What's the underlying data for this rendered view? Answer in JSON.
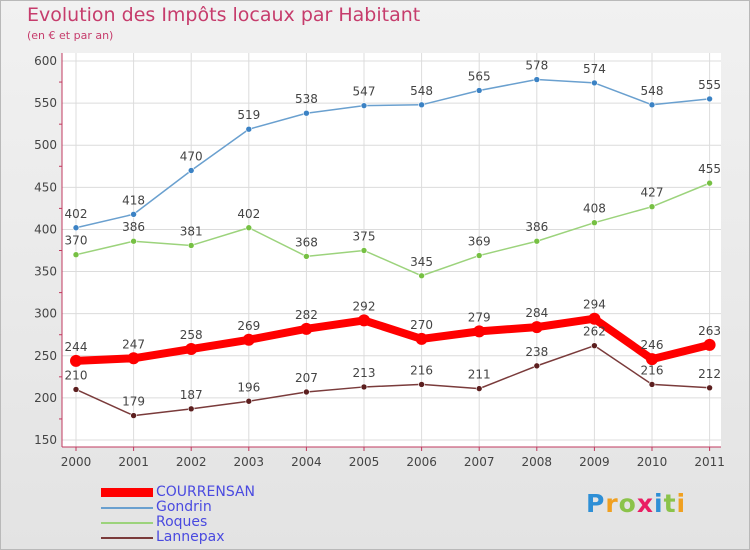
{
  "title": "Evolution des Impôts locaux par Habitant",
  "subtitle": "(en € et par an)",
  "logo": {
    "text": "Proxiti",
    "colors": [
      "#2e8fd6",
      "#f0a020",
      "#8bc34a",
      "#e91e63",
      "#2e8fd6",
      "#8bc34a",
      "#f0a020"
    ]
  },
  "chart_data": {
    "type": "line",
    "categories": [
      "2000",
      "2001",
      "2002",
      "2003",
      "2004",
      "2005",
      "2006",
      "2007",
      "2008",
      "2009",
      "2010",
      "2011"
    ],
    "ylim": [
      150,
      600
    ],
    "yticks": [
      150,
      200,
      250,
      300,
      350,
      400,
      450,
      500,
      550,
      600
    ],
    "grid": true,
    "legend_position": "bottom-left",
    "series": [
      {
        "name": "COURRENSAN",
        "values": [
          244,
          247,
          258,
          269,
          282,
          292,
          270,
          279,
          284,
          294,
          246,
          263
        ],
        "color": "#ff0000",
        "emphasis": true
      },
      {
        "name": "Gondrin",
        "values": [
          402,
          418,
          470,
          519,
          538,
          547,
          548,
          565,
          578,
          574,
          548,
          555
        ],
        "color": "#6aa0cf",
        "marker_color": "#3b82c4"
      },
      {
        "name": "Roques",
        "values": [
          370,
          386,
          381,
          402,
          368,
          375,
          345,
          369,
          386,
          408,
          427,
          455
        ],
        "color": "#9cd37c",
        "marker_color": "#76c043"
      },
      {
        "name": "Lannepax",
        "values": [
          210,
          179,
          187,
          196,
          207,
          213,
          216,
          211,
          238,
          262,
          216,
          212
        ],
        "color": "#7a3b3b",
        "marker_color": "#5c1f1f"
      }
    ]
  }
}
